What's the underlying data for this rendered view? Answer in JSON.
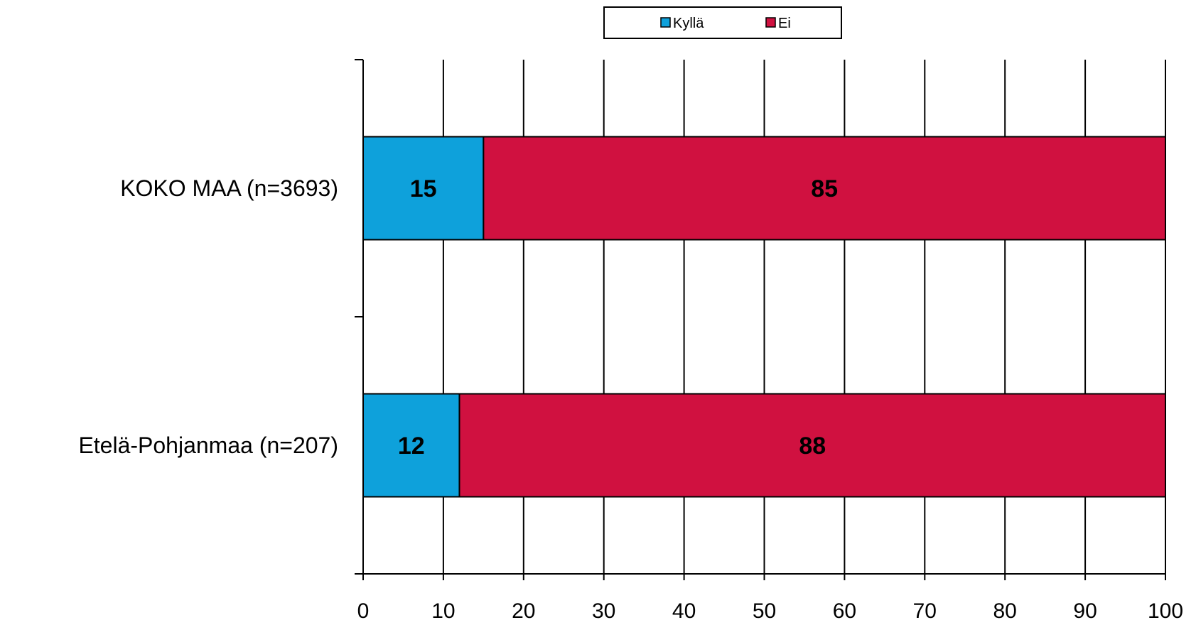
{
  "chart_data": {
    "type": "bar",
    "orientation": "horizontal",
    "stacked": true,
    "categories": [
      "KOKO MAA (n=3693)",
      "Etelä-Pohjanmaa (n=207)"
    ],
    "series": [
      {
        "name": "Kyllä",
        "values": [
          15,
          12
        ],
        "color": "#0EA1DB"
      },
      {
        "name": "Ei",
        "values": [
          85,
          88
        ],
        "color": "#D01140"
      }
    ],
    "xlim": [
      0,
      100
    ],
    "xticks": [
      0,
      10,
      20,
      30,
      40,
      50,
      60,
      70,
      80,
      90,
      100
    ],
    "grid": true,
    "legend_position": "top"
  }
}
